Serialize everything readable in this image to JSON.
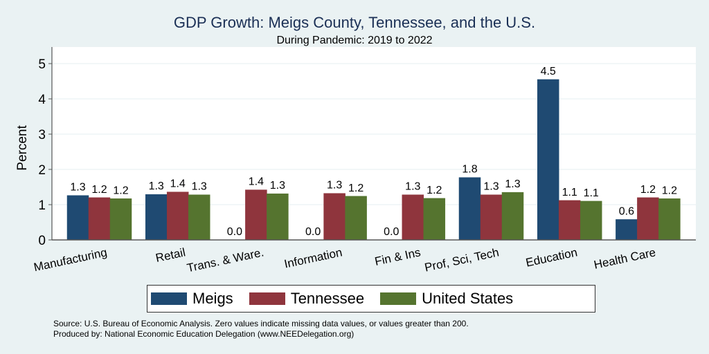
{
  "chart_data": {
    "type": "bar",
    "title": "GDP Growth: Meigs County, Tennessee, and the U.S.",
    "subtitle": "During Pandemic: 2019 to 2022",
    "xlabel": "",
    "ylabel": "Percent",
    "ylim": [
      0,
      5.3
    ],
    "yticks": [
      "0",
      "1",
      "2",
      "3",
      "4",
      "5"
    ],
    "grid": true,
    "legend_position": "bottom",
    "categories": [
      "Manufacturing",
      "Retail",
      "Trans. & Ware.",
      "Information",
      "Fin & Ins",
      "Prof, Sci, Tech",
      "Education",
      "Health Care"
    ],
    "series": [
      {
        "name": "Meigs",
        "color": "#1f4a72",
        "values": [
          1.26,
          1.29,
          0.0,
          0.0,
          0.0,
          1.77,
          4.55,
          0.58
        ],
        "labels": [
          "1.3",
          "1.3",
          "0.0",
          "0.0",
          "0.0",
          "1.8",
          "4.5",
          "0.6"
        ]
      },
      {
        "name": "Tennessee",
        "color": "#8f353d",
        "values": [
          1.2,
          1.36,
          1.42,
          1.32,
          1.28,
          1.28,
          1.12,
          1.2
        ],
        "labels": [
          "1.2",
          "1.4",
          "1.4",
          "1.3",
          "1.3",
          "1.3",
          "1.1",
          "1.2"
        ]
      },
      {
        "name": "United States",
        "color": "#55742f",
        "values": [
          1.17,
          1.28,
          1.31,
          1.24,
          1.18,
          1.35,
          1.1,
          1.17
        ],
        "labels": [
          "1.2",
          "1.3",
          "1.3",
          "1.2",
          "1.2",
          "1.3",
          "1.1",
          "1.2"
        ]
      }
    ]
  },
  "footer": {
    "source": "Source: U.S. Bureau of Economic Analysis. Zero values indicate missing data values, or values greater than 200.",
    "produced_by": "Produced by: National Economic Education Delegation (www.NEEDelegation.org)"
  }
}
